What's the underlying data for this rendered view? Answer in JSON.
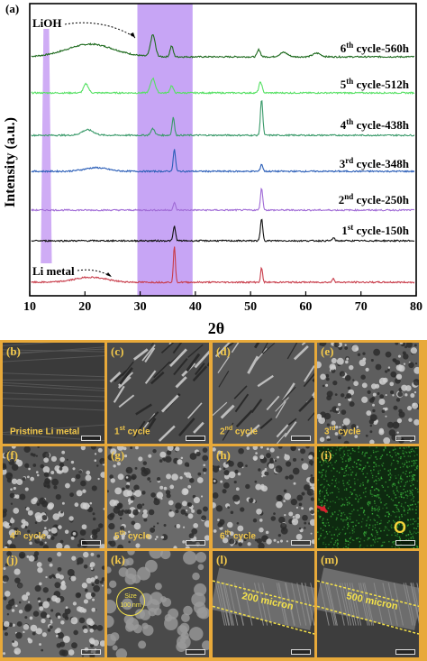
{
  "figure": {
    "panel_a_label": "(a)",
    "lioh_label": "LiOH",
    "li_metal_label": "Li metal",
    "xlabel": "2θ",
    "ylabel": "Intensity (a.u.)"
  },
  "chart_data": {
    "type": "line",
    "xlim": [
      10,
      80
    ],
    "x_ticks": [
      10,
      20,
      30,
      40,
      50,
      60,
      70,
      80
    ],
    "y_ticks_labeled": false,
    "highlight_band": {
      "x_range": [
        29.5,
        39.5
      ],
      "color": "#b487f2"
    },
    "narrow_band": {
      "x_range": [
        12,
        14
      ],
      "color": "#c79df3"
    },
    "series": [
      {
        "name": "6th cycle-560h",
        "label_main": "6",
        "label_sup": "th",
        "label_rest": " cycle-560h",
        "color": "#1f6b1f",
        "peaks": [
          [
            21,
            3.5,
            6
          ],
          [
            32.3,
            6,
            0.6
          ],
          [
            35.7,
            3,
            0.4
          ],
          [
            51.5,
            2,
            0.4
          ],
          [
            56,
            1.2,
            1
          ],
          [
            62,
            1,
            1
          ]
        ]
      },
      {
        "name": "5th cycle-512h",
        "label_main": "5",
        "label_sup": "th",
        "label_rest": " cycle-512h",
        "color": "#55e063",
        "peaks": [
          [
            20.2,
            2.5,
            0.6
          ],
          [
            32.3,
            4,
            0.6
          ],
          [
            35.7,
            2,
            0.4
          ],
          [
            51.8,
            3,
            0.4
          ]
        ]
      },
      {
        "name": "4th cycle-438h",
        "label_main": "4",
        "label_sup": "th",
        "label_rest": " cycle-438h",
        "color": "#3a9a6a",
        "peaks": [
          [
            20.5,
            1.5,
            1.5
          ],
          [
            32.3,
            1.8,
            0.5
          ],
          [
            36,
            5,
            0.3
          ],
          [
            52,
            10,
            0.3
          ]
        ]
      },
      {
        "name": "3rd cycle-348h",
        "label_main": "3",
        "label_sup": "rd",
        "label_rest": " cycle-348h",
        "color": "#2c5fb8",
        "peaks": [
          [
            22,
            1,
            3
          ],
          [
            36.2,
            6,
            0.3
          ],
          [
            52,
            2,
            0.3
          ]
        ]
      },
      {
        "name": "2nd cycle-250h",
        "label_main": "2",
        "label_sup": "nd",
        "label_rest": " cycle-250h",
        "color": "#a06bd6",
        "peaks": [
          [
            36.2,
            2,
            0.3
          ],
          [
            52,
            6,
            0.3
          ]
        ]
      },
      {
        "name": "1st cycle-150h",
        "label_main": "1",
        "label_sup": "st",
        "label_rest": " cycle-150h",
        "color": "#111111",
        "peaks": [
          [
            36.2,
            4,
            0.3
          ],
          [
            52,
            6,
            0.3
          ],
          [
            65,
            0.8,
            0.3
          ]
        ]
      },
      {
        "name": "Li metal",
        "label_main": "",
        "label_sup": "",
        "label_rest": "",
        "color": "#c83c4a",
        "peaks": [
          [
            21,
            1.4,
            4
          ],
          [
            36.2,
            10,
            0.25
          ],
          [
            52,
            4,
            0.25
          ],
          [
            65,
            1.2,
            0.25
          ]
        ]
      }
    ]
  },
  "panels": [
    {
      "id": "b",
      "label": "(b)",
      "caption": "Pristine Li metal",
      "cap_main": "Pristine Li metal",
      "cap_sup": "",
      "cap_rest": "",
      "tone": "#3a3a3a",
      "texture": "smooth"
    },
    {
      "id": "c",
      "label": "(c)",
      "caption": "1st cycle",
      "cap_main": "1",
      "cap_sup": "st",
      "cap_rest": " cycle",
      "tone": "#4a4a4a",
      "texture": "cracked"
    },
    {
      "id": "d",
      "label": "(d)",
      "caption": "2nd cycle",
      "cap_main": "2",
      "cap_sup": "nd",
      "cap_rest": " cycle",
      "tone": "#575757",
      "texture": "fibrous"
    },
    {
      "id": "e",
      "label": "(e)",
      "caption": "3rd cycle",
      "cap_main": "3",
      "cap_sup": "rd",
      "cap_rest": " cycle",
      "tone": "#5e5e5e",
      "texture": "grainy"
    },
    {
      "id": "f",
      "label": "(f)",
      "caption": "4th cycle",
      "cap_main": "4",
      "cap_sup": "th",
      "cap_rest": " cycle",
      "tone": "#555555",
      "texture": "grainy"
    },
    {
      "id": "g",
      "label": "(g)",
      "caption": "5th cycle",
      "cap_main": "5",
      "cap_sup": "th",
      "cap_rest": " cycle",
      "tone": "#6a6a6a",
      "texture": "porous"
    },
    {
      "id": "h",
      "label": "(h)",
      "caption": "6th cycle",
      "cap_main": "6",
      "cap_sup": "th",
      "cap_rest": " cycle",
      "tone": "#626262",
      "texture": "porous"
    },
    {
      "id": "i",
      "label": "(i)",
      "caption": "",
      "cap_main": "",
      "cap_sup": "",
      "cap_rest": "",
      "tone": "#0e2a10",
      "texture": "map",
      "map_label": "O"
    },
    {
      "id": "j",
      "label": "(j)",
      "caption": "",
      "cap_main": "",
      "cap_sup": "",
      "cap_rest": "",
      "tone": "#6a6a6a",
      "texture": "grainy"
    },
    {
      "id": "k",
      "label": "(k)",
      "caption": "",
      "cap_main": "",
      "cap_sup": "",
      "cap_rest": "",
      "tone": "#4a4a4a",
      "texture": "blobs",
      "inset_title": "Size",
      "inset_value": "100 nm"
    },
    {
      "id": "l",
      "label": "(l)",
      "caption": "",
      "cap_main": "",
      "cap_sup": "",
      "cap_rest": "",
      "tone": "#3d3d3d",
      "texture": "cross",
      "measure": "200 micron"
    },
    {
      "id": "m",
      "label": "(m)",
      "caption": "",
      "cap_main": "",
      "cap_sup": "",
      "cap_rest": "",
      "tone": "#3d3d3d",
      "texture": "cross",
      "measure": "500 micron"
    }
  ]
}
